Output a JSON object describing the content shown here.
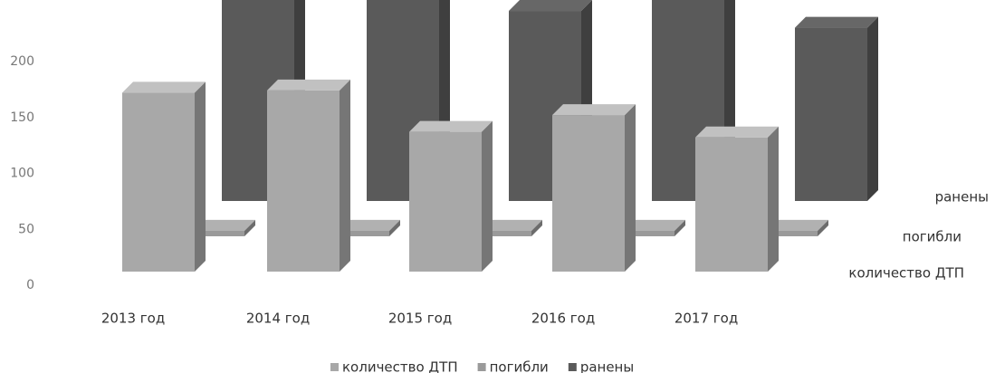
{
  "chart_data": {
    "type": "bar3d",
    "categories": [
      "2013 год",
      "2014 год",
      "2015 год",
      "2016 год",
      "2017 год"
    ],
    "series": [
      {
        "name": "количество ДТП",
        "color": "#a8a8a8",
        "values": [
          160,
          162,
          125,
          140,
          120
        ]
      },
      {
        "name": "погибли",
        "color": "#9a9a9a",
        "values": [
          5,
          5,
          5,
          5,
          5
        ]
      },
      {
        "name": "ранены",
        "color": "#5a5a5a",
        "values": [
          210,
          200,
          170,
          185,
          155
        ]
      }
    ],
    "ylim": [
      0,
      200
    ],
    "yticks": [
      0,
      50,
      100,
      150,
      200
    ],
    "legend": "bottom"
  }
}
